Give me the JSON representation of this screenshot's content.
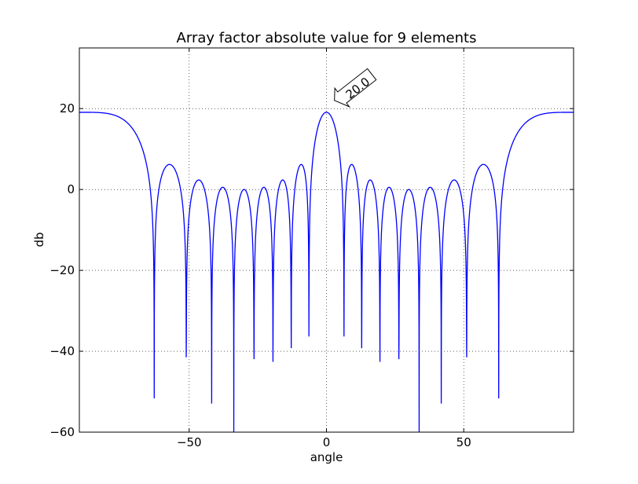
{
  "chart_data": {
    "type": "line",
    "title": "Array factor absolute value for 9 elements",
    "xlabel": "angle",
    "ylabel": "db",
    "xlim": [
      -90,
      90
    ],
    "ylim": [
      -60,
      35
    ],
    "xticks": [
      -50,
      0,
      50
    ],
    "yticks": [
      -60,
      -40,
      -20,
      0,
      20
    ],
    "xtick_labels": [
      "−50",
      "0",
      "50"
    ],
    "ytick_labels": [
      "−60",
      "−40",
      "−20",
      "0",
      "20"
    ],
    "grid": true,
    "annotation": {
      "text": "20.0",
      "x": 0,
      "y": 20
    },
    "series": [
      {
        "elements": 9,
        "spacing_wavelengths": 1,
        "color": "#0000ff"
      }
    ]
  }
}
